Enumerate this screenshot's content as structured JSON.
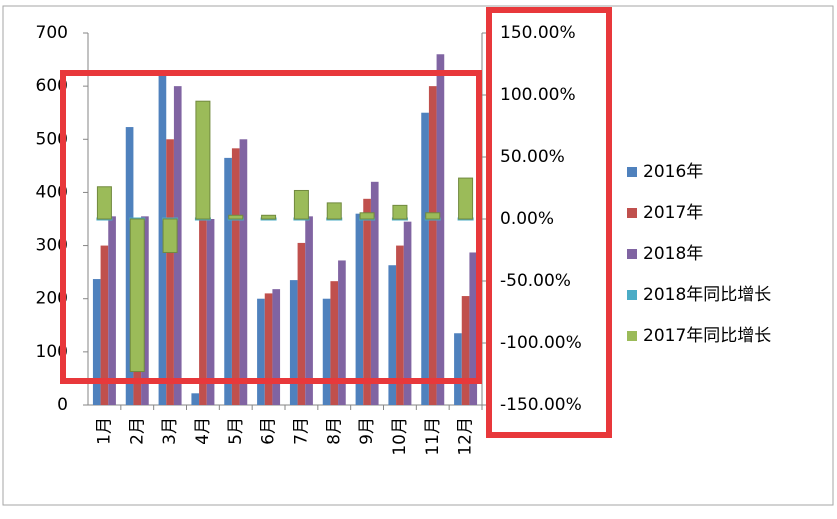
{
  "chart_data": {
    "type": "bar",
    "categories": [
      "1月",
      "2月",
      "3月",
      "4月",
      "5月",
      "6月",
      "7月",
      "8月",
      "9月",
      "10月",
      "11月",
      "12月"
    ],
    "series": [
      {
        "name": "2016年",
        "color": "#4f81bd",
        "values": [
          237,
          523,
          630,
          22,
          465,
          200,
          235,
          200,
          360,
          263,
          550,
          135
        ]
      },
      {
        "name": "2017年",
        "color": "#c0504d",
        "values": [
          300,
          70,
          500,
          350,
          483,
          210,
          305,
          233,
          388,
          300,
          600,
          205
        ]
      },
      {
        "name": "2018年",
        "color": "#8064a2",
        "values": [
          355,
          355,
          600,
          350,
          500,
          218,
          355,
          272,
          420,
          345,
          660,
          287
        ]
      },
      {
        "name": "2018年同比增长",
        "color": "#4bacc6",
        "axis": "y2",
        "values": [
          0,
          0,
          0,
          0,
          0,
          0,
          0,
          0,
          0,
          0,
          0,
          0
        ]
      },
      {
        "name": "2017年同比增长",
        "color": "#9bbb59",
        "axis": "y2",
        "values": [
          26,
          -123,
          -27,
          95,
          3,
          3,
          23,
          13,
          5,
          11,
          5,
          33
        ]
      }
    ],
    "ylim": [
      0,
      700
    ],
    "yticks": [
      0,
      100,
      200,
      300,
      400,
      500,
      600,
      700
    ],
    "y2lim": [
      -150,
      150
    ],
    "y2ticks": [
      {
        "value": 150,
        "label": "150.00%"
      },
      {
        "value": 100,
        "label": "100.00%"
      },
      {
        "value": 50,
        "label": "50.00%"
      },
      {
        "value": 0,
        "label": "0.00%"
      },
      {
        "value": -50,
        "label": "-50.00%"
      },
      {
        "value": -100,
        "label": "-100.00%"
      },
      {
        "value": -150,
        "label": "-150.00%"
      }
    ],
    "grid": false,
    "legend": "right"
  }
}
